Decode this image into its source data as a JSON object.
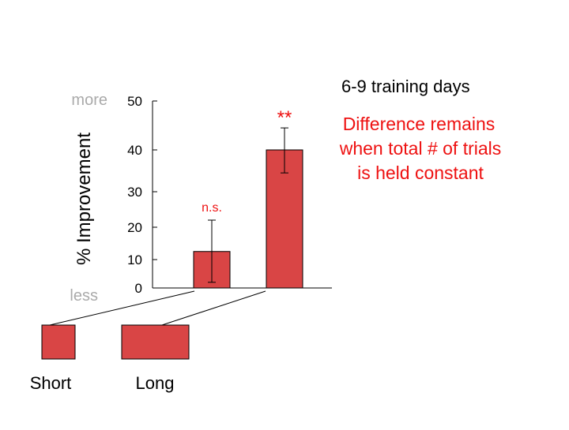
{
  "chart_data": {
    "type": "bar",
    "categories": [
      "Short",
      "Long"
    ],
    "values": [
      12.5,
      40
    ],
    "error_low": [
      2,
      34.5
    ],
    "error_high": [
      22,
      44.5
    ],
    "significance": [
      "n.s.",
      "**"
    ],
    "title": "6-9 training days",
    "ylabel": "% Improvement",
    "ylim": [
      0,
      50
    ],
    "yticks": [
      0,
      10,
      20,
      30,
      40,
      50
    ],
    "y_top_label": "more",
    "y_bottom_label": "less",
    "annotation_lines": [
      "Difference remains",
      "when total # of trials",
      "is held constant"
    ],
    "colors": {
      "bar": "#d94545",
      "text_red": "#ee1111",
      "muted": "#aaaaaa"
    }
  },
  "legend_items": [
    {
      "label": "Short"
    },
    {
      "label": "Long"
    }
  ]
}
